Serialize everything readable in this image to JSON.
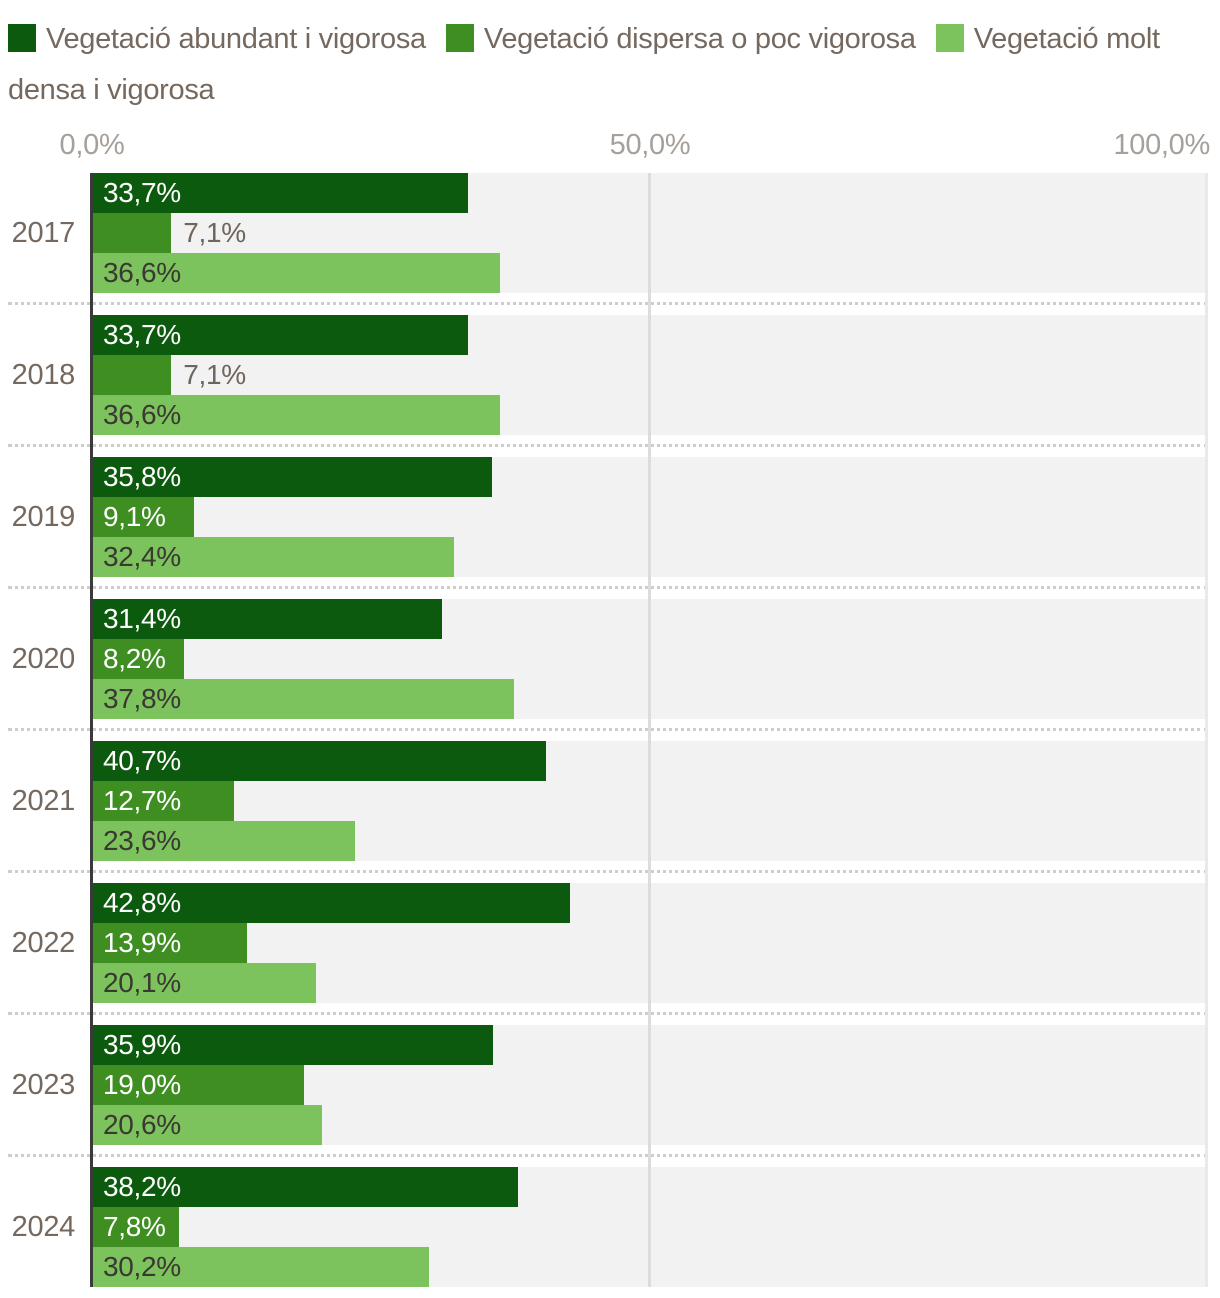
{
  "chart_data": {
    "type": "bar",
    "orientation": "horizontal",
    "categories": [
      "2017",
      "2018",
      "2019",
      "2020",
      "2021",
      "2022",
      "2023",
      "2024"
    ],
    "series": [
      {
        "name": "Vegetació abundant i vigorosa",
        "color": "#0b5a0e",
        "values": [
          33.7,
          33.7,
          35.8,
          31.4,
          40.7,
          42.8,
          35.9,
          38.2
        ],
        "labels": [
          "33,7%",
          "33,7%",
          "35,8%",
          "31,4%",
          "40,7%",
          "42,8%",
          "35,9%",
          "38,2%"
        ]
      },
      {
        "name": "Vegetació dispersa o poc vigorosa",
        "color": "#3e8e22",
        "values": [
          7.1,
          7.1,
          9.1,
          8.2,
          12.7,
          13.9,
          19.0,
          7.8
        ],
        "labels": [
          "7,1%",
          "7,1%",
          "9,1%",
          "8,2%",
          "12,7%",
          "13,9%",
          "19,0%",
          "7,8%"
        ]
      },
      {
        "name": "Vegetació molt densa i vigorosa",
        "color": "#7cc35e",
        "values": [
          36.6,
          36.6,
          32.4,
          37.8,
          23.6,
          20.1,
          20.6,
          30.2
        ],
        "labels": [
          "36,6%",
          "36,6%",
          "32,4%",
          "37,8%",
          "23,6%",
          "20,1%",
          "20,6%",
          "30,2%"
        ]
      }
    ],
    "x_axis": {
      "ticks": [
        {
          "value": 0,
          "label": "0,0%"
        },
        {
          "value": 50,
          "label": "50,0%"
        },
        {
          "value": 100,
          "label": "100,0%"
        }
      ]
    },
    "xlim": [
      0,
      100
    ],
    "value_suffix": "%",
    "decimal_separator": ",",
    "legend_position": "top",
    "plot_background": "#f2f2f2",
    "gridlines": [
      50,
      100
    ]
  }
}
